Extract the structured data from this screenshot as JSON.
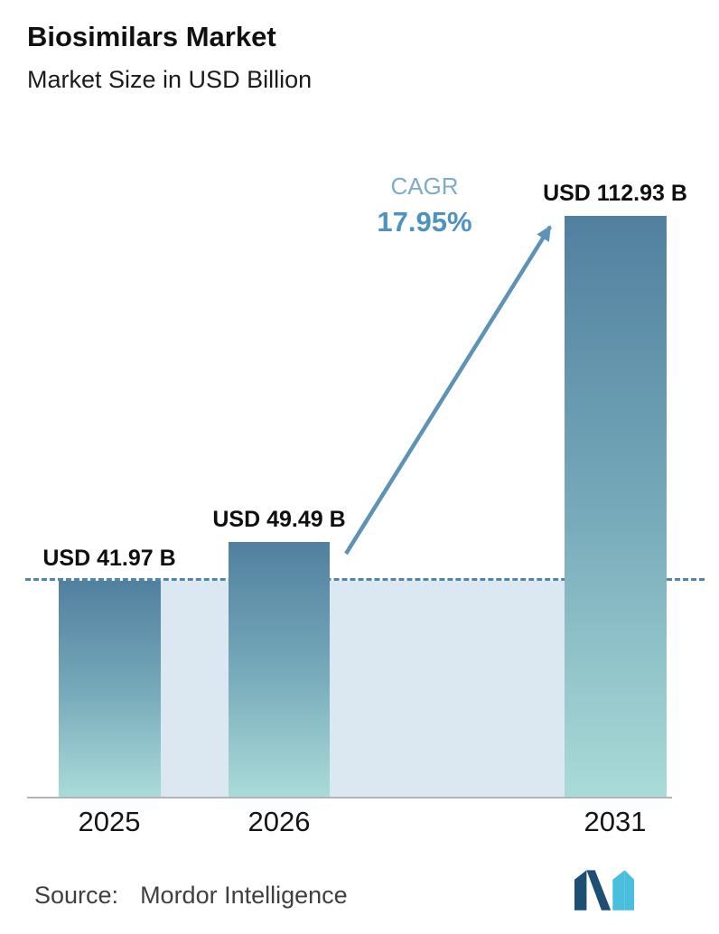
{
  "header": {
    "title": "Biosimilars Market",
    "subtitle": "Market Size in USD Billion"
  },
  "chart_data": {
    "type": "bar",
    "title": "Biosimilars Market",
    "subtitle": "Market Size in USD Billion",
    "units": "USD Billion",
    "categories": [
      "2025",
      "2026",
      "2031"
    ],
    "values": [
      41.97,
      49.49,
      112.93
    ],
    "value_labels": [
      "USD 41.97 B",
      "USD 49.49 B",
      "USD 112.93 B"
    ],
    "xlabel": "",
    "ylabel": "",
    "ylim": [
      0,
      123
    ],
    "grid": false,
    "legend": false,
    "cagr": {
      "label": "CAGR",
      "value": "17.95%"
    },
    "reference_line": {
      "value": 41.97,
      "style": "dashed"
    },
    "annotations": [
      "growth arrow from top of 2026 bar to top of 2031 bar"
    ],
    "colors": {
      "bar_top": "#51809f",
      "bar_bottom": "#a9dbd8",
      "shade": "#dbe8f1",
      "reference_line": "#4c88ad",
      "arrow": "#5d93b6",
      "cagr_label": "#7cabce",
      "cagr_value": "#4d92c0",
      "axis": "#b4b4b4"
    }
  },
  "footer": {
    "source_label": "Source:",
    "source_value": "Mordor Intelligence"
  }
}
